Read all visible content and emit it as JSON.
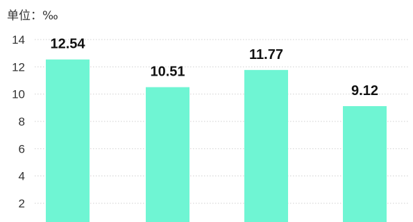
{
  "unit_label": "单位：‰",
  "colors": {
    "bar": "#6FF5D3",
    "grid": "#cfcfcf",
    "text": "#333333"
  },
  "chart_data": {
    "type": "bar",
    "categories": [
      "",
      "",
      "",
      ""
    ],
    "values": [
      12.54,
      10.51,
      11.77,
      9.12
    ],
    "value_labels": [
      "12.54",
      "10.51",
      "11.77",
      "9.12"
    ],
    "y_ticks": [
      "2",
      "4",
      "6",
      "8",
      "10",
      "12",
      "14"
    ],
    "ylim": [
      0,
      14
    ],
    "grid": true
  }
}
